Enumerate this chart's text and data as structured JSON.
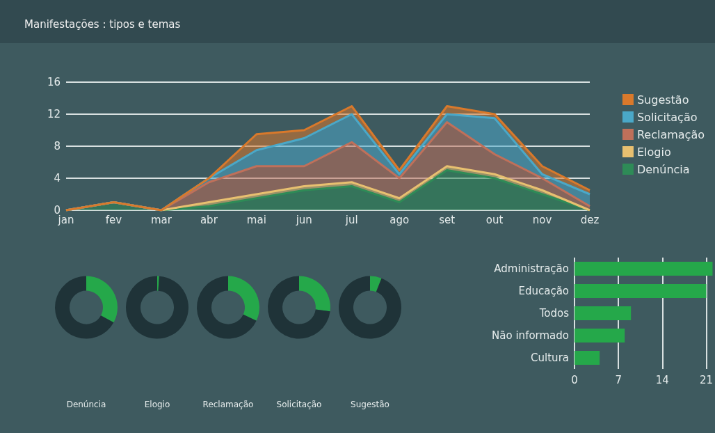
{
  "chart_data": [
    {
      "type": "area",
      "title": "Manifestações : tipos e temas",
      "stacked": true,
      "categories": [
        "jan",
        "fev",
        "mar",
        "abr",
        "mai",
        "jun",
        "jul",
        "ago",
        "set",
        "out",
        "nov",
        "dez"
      ],
      "ylim": [
        0,
        16
      ],
      "yticks": [
        0,
        4,
        8,
        12,
        16
      ],
      "grid": "y",
      "legend": "right",
      "series": [
        {
          "name": "Denúncia",
          "color": "#2e8b57",
          "values": [
            0,
            1,
            0,
            0.5,
            1.5,
            2.5,
            3,
            1,
            5,
            4,
            2,
            0
          ]
        },
        {
          "name": "Elogio",
          "color": "#e8c070",
          "values": [
            0,
            0,
            0,
            0.5,
            0.5,
            0.5,
            0.5,
            0.5,
            0.5,
            0.5,
            0.5,
            0
          ]
        },
        {
          "name": "Reclamação",
          "color": "#c0705a",
          "values": [
            0,
            0,
            0,
            2.5,
            3.5,
            2.5,
            5,
            2.5,
            5.5,
            2.5,
            1.5,
            0.5
          ]
        },
        {
          "name": "Solicitação",
          "color": "#4aa8c8",
          "values": [
            0,
            0,
            0,
            0.5,
            2,
            3.5,
            3.5,
            0.5,
            1,
            4.5,
            0.5,
            1.5
          ]
        },
        {
          "name": "Sugestão",
          "color": "#d9792b",
          "values": [
            0,
            0,
            0,
            0,
            2,
            1,
            1,
            0.5,
            1,
            0.5,
            1,
            0.5
          ]
        }
      ]
    },
    {
      "type": "donut",
      "title": "Denúncia",
      "categories": [
        null,
        null
      ],
      "values": [
        33,
        67
      ],
      "colors": [
        "#25a84a",
        "#1f3338"
      ]
    },
    {
      "type": "donut",
      "title": "Elogio",
      "categories": [
        null,
        null
      ],
      "values": [
        1,
        99
      ],
      "colors": [
        "#25a84a",
        "#1f3338"
      ]
    },
    {
      "type": "donut",
      "title": "Reclamação",
      "categories": [
        null,
        null
      ],
      "values": [
        32,
        68
      ],
      "colors": [
        "#25a84a",
        "#1f3338"
      ]
    },
    {
      "type": "donut",
      "title": "Solicitação",
      "categories": [
        null,
        null
      ],
      "values": [
        27,
        73
      ],
      "colors": [
        "#25a84a",
        "#1f3338"
      ]
    },
    {
      "type": "donut",
      "title": "Sugestão",
      "categories": [
        null,
        null
      ],
      "values": [
        6,
        94
      ],
      "colors": [
        "#25a84a",
        "#1f3338"
      ]
    },
    {
      "type": "bar",
      "orientation": "horizontal",
      "categories": [
        "Administração",
        "Educação",
        "Todos",
        "Não informado",
        "Cultura"
      ],
      "values": [
        22,
        21,
        9,
        8,
        4
      ],
      "color": "#25a84a",
      "xlim": [
        0,
        22
      ],
      "xticks": [
        0,
        7,
        14,
        21
      ],
      "grid": "x"
    }
  ]
}
